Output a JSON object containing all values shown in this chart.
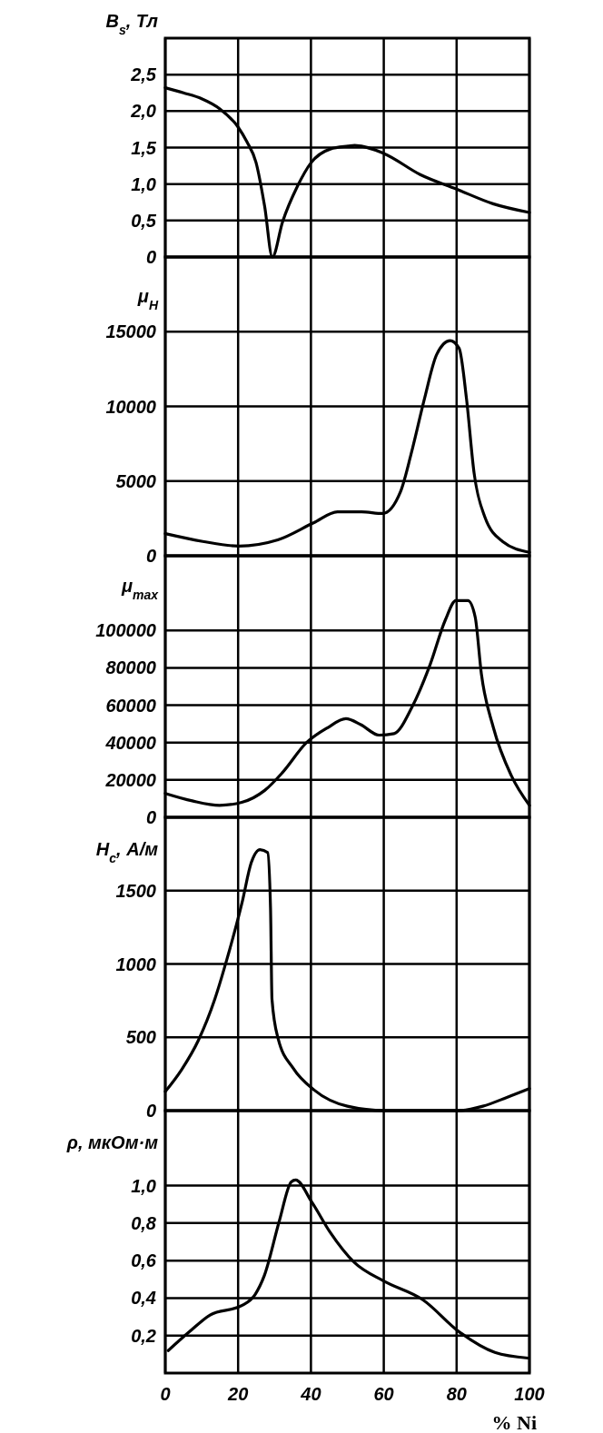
{
  "chart_data": [
    {
      "type": "line",
      "ylabel": "B$_{s}$, Тл",
      "x": [
        0,
        5,
        10,
        15,
        20,
        22.4,
        24.9,
        27.3,
        29.4,
        32.2,
        36.3,
        40,
        45.3,
        50.2,
        52,
        60,
        70,
        80,
        90,
        100
      ],
      "values": [
        2.32,
        2.25,
        2.17,
        2.03,
        1.78,
        1.58,
        1.3,
        0.69,
        0,
        0.48,
        0.97,
        1.29,
        1.48,
        1.52,
        1.53,
        1.42,
        1.13,
        0.93,
        0.73,
        0.61
      ],
      "color": "#000000",
      "xlim": [
        0,
        100
      ],
      "ylim": [
        0,
        3
      ],
      "xticks": [
        0,
        20,
        40,
        60,
        80,
        100
      ],
      "yticks": [
        {
          "value": 0,
          "label": "0"
        },
        {
          "value": 0.5,
          "label": "0,5"
        },
        {
          "value": 1,
          "label": "1,0"
        },
        {
          "value": 1.5,
          "label": "1,5"
        },
        {
          "value": 2,
          "label": "2,0"
        },
        {
          "value": 2.5,
          "label": "2,5"
        }
      ],
      "grid": true,
      "tick_labels": "y"
    },
    {
      "type": "line",
      "ylabel": "μ$_{H}$",
      "x": [
        0,
        10.3,
        20.2,
        30.9,
        40.7,
        47.3,
        53.9,
        59.7,
        64.6,
        67.9,
        71.2,
        74.5,
        78.2,
        80.7,
        82.7,
        84.8,
        87.7,
        92.6,
        100
      ],
      "values": [
        1480,
        960,
        650,
        1060,
        2200,
        2940,
        2940,
        2830,
        4290,
        7200,
        10540,
        13460,
        14400,
        13880,
        10540,
        5540,
        2630,
        960,
        230
      ],
      "color": "#000000",
      "xlim": [
        0,
        100
      ],
      "ylim": [
        0,
        20000
      ],
      "xticks": [
        0,
        20,
        40,
        60,
        80,
        100
      ],
      "yticks": [
        0,
        5000,
        10000,
        15000
      ],
      "grid": true,
      "tick_labels": "y"
    },
    {
      "type": "line",
      "ylabel": "μ$_{max}$",
      "x": [
        0,
        7.4,
        14.9,
        21,
        27.3,
        32.2,
        38.8,
        44.6,
        49.6,
        53.7,
        58.7,
        62.8,
        67.8,
        72.7,
        76.9,
        79.8,
        83.1,
        85.1,
        86.8,
        90.1,
        95,
        100
      ],
      "values": [
        12800,
        8800,
        6400,
        8000,
        14400,
        24000,
        40000,
        48000,
        52800,
        49600,
        44000,
        44800,
        59200,
        81600,
        105600,
        116000,
        116000,
        107200,
        76800,
        48000,
        22400,
        6400
      ],
      "color": "#000000",
      "xlim": [
        0,
        100
      ],
      "ylim": [
        0,
        140000
      ],
      "xticks": [
        0,
        20,
        40,
        60,
        80,
        100
      ],
      "yticks": [
        0,
        20000,
        40000,
        60000,
        80000,
        100000
      ],
      "grid": true,
      "tick_labels": "y"
    },
    {
      "type": "line",
      "ylabel": "H$_{c}$, А/м",
      "x": [
        0,
        4.5,
        9.1,
        13.6,
        16.9,
        21.1,
        23.6,
        26,
        28.1,
        28.9,
        29.3,
        31,
        35.1,
        40.9,
        50,
        60.3,
        80.6,
        87.2,
        93.8,
        100
      ],
      "values": [
        130,
        280,
        480,
        760,
        1030,
        1420,
        1690,
        1780,
        1760,
        1380,
        760,
        490,
        290,
        140,
        30,
        0,
        0,
        30,
        90,
        150
      ],
      "color": "#000000",
      "xlim": [
        0,
        100
      ],
      "ylim": [
        0,
        2000
      ],
      "xticks": [
        0,
        20,
        40,
        60,
        80,
        100
      ],
      "yticks": [
        0,
        500,
        1000,
        1500
      ],
      "grid": true,
      "tick_labels": "y"
    },
    {
      "type": "line",
      "ylabel": "ρ, мкОм·м",
      "xlabel": "% Ni",
      "x": [
        0.8,
        6.6,
        12.3,
        21,
        24.7,
        27.2,
        31.3,
        34.6,
        35.8,
        40.3,
        45.3,
        51.9,
        60.1,
        70.8,
        80.7,
        90.5,
        99.6
      ],
      "values": [
        0.12,
        0.22,
        0.31,
        0.36,
        0.42,
        0.52,
        0.81,
        1.02,
        1.03,
        0.91,
        0.75,
        0.59,
        0.49,
        0.39,
        0.22,
        0.11,
        0.08
      ],
      "color": "#000000",
      "xlim": [
        0,
        100
      ],
      "ylim": [
        0,
        1.4
      ],
      "xticks": [
        0,
        20,
        40,
        60,
        80,
        100
      ],
      "yticks": [
        {
          "value": 0.2,
          "label": "0,2"
        },
        {
          "value": 0.4,
          "label": "0,4"
        },
        {
          "value": 0.6,
          "label": "0,6"
        },
        {
          "value": 0.8,
          "label": "0,8"
        },
        {
          "value": 1,
          "label": "1,0"
        }
      ],
      "grid": true
    }
  ]
}
